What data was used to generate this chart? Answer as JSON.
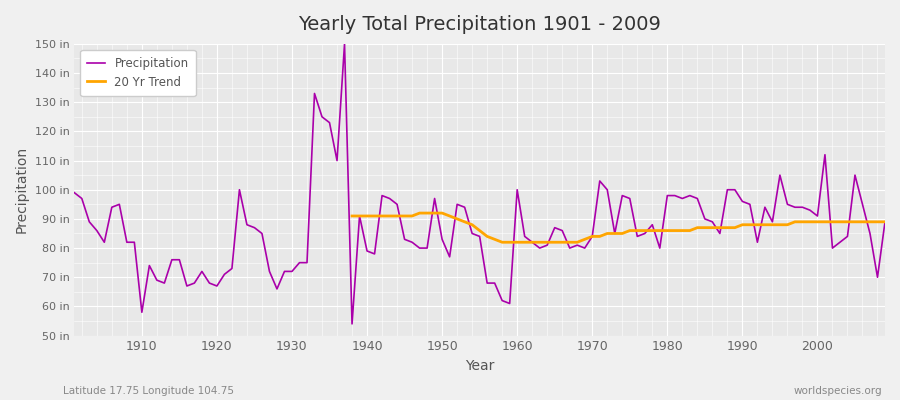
{
  "title": "Yearly Total Precipitation 1901 - 2009",
  "xlabel": "Year",
  "ylabel": "Precipitation",
  "bg_color": "#f0f0f0",
  "plot_bg_color": "#e8e8e8",
  "precip_color": "#aa00aa",
  "trend_color": "#ffa500",
  "ylim": [
    50,
    150
  ],
  "yticks": [
    50,
    60,
    70,
    80,
    90,
    100,
    110,
    120,
    130,
    140,
    150
  ],
  "ytick_labels": [
    "50 in",
    "60 in",
    "70 in",
    "80 in",
    "90 in",
    "100 in",
    "110 in",
    "120 in",
    "130 in",
    "140 in",
    "150 in"
  ],
  "xlim": [
    1901,
    2009
  ],
  "xticks": [
    1910,
    1920,
    1930,
    1940,
    1950,
    1960,
    1970,
    1980,
    1990,
    2000
  ],
  "footnote_left": "Latitude 17.75 Longitude 104.75",
  "footnote_right": "worldspecies.org",
  "legend_labels": [
    "Precipitation",
    "20 Yr Trend"
  ],
  "years": [
    1901,
    1902,
    1903,
    1904,
    1905,
    1906,
    1907,
    1908,
    1909,
    1910,
    1911,
    1912,
    1913,
    1914,
    1915,
    1916,
    1917,
    1918,
    1919,
    1920,
    1921,
    1922,
    1923,
    1924,
    1925,
    1926,
    1927,
    1928,
    1929,
    1930,
    1931,
    1932,
    1933,
    1934,
    1935,
    1936,
    1937,
    1938,
    1939,
    1940,
    1941,
    1942,
    1943,
    1944,
    1945,
    1946,
    1947,
    1948,
    1949,
    1950,
    1951,
    1952,
    1953,
    1954,
    1955,
    1956,
    1957,
    1958,
    1959,
    1960,
    1961,
    1962,
    1963,
    1964,
    1965,
    1966,
    1967,
    1968,
    1969,
    1970,
    1971,
    1972,
    1973,
    1974,
    1975,
    1976,
    1977,
    1978,
    1979,
    1980,
    1981,
    1982,
    1983,
    1984,
    1985,
    1986,
    1987,
    1988,
    1989,
    1990,
    1991,
    1992,
    1993,
    1994,
    1995,
    1996,
    1997,
    1998,
    1999,
    2000,
    2001,
    2002,
    2003,
    2004,
    2005,
    2006,
    2007,
    2008,
    2009
  ],
  "precip": [
    99,
    97,
    89,
    86,
    82,
    94,
    95,
    82,
    82,
    58,
    74,
    69,
    68,
    76,
    76,
    67,
    68,
    72,
    68,
    67,
    71,
    73,
    100,
    88,
    87,
    85,
    72,
    66,
    72,
    72,
    75,
    75,
    133,
    125,
    123,
    110,
    150,
    54,
    91,
    79,
    78,
    98,
    97,
    95,
    83,
    82,
    80,
    80,
    97,
    83,
    77,
    95,
    94,
    85,
    84,
    68,
    68,
    62,
    61,
    100,
    84,
    82,
    80,
    81,
    87,
    86,
    80,
    81,
    80,
    84,
    103,
    100,
    85,
    98,
    97,
    84,
    85,
    88,
    80,
    98,
    98,
    97,
    98,
    97,
    90,
    89,
    85,
    100,
    100,
    96,
    95,
    82,
    94,
    89,
    105,
    95,
    94,
    94,
    93,
    91,
    112,
    80,
    82,
    84,
    105,
    95,
    85,
    70,
    89
  ],
  "trend_years": [
    1938,
    1939,
    1940,
    1941,
    1942,
    1943,
    1944,
    1945,
    1946,
    1947,
    1948,
    1949,
    1950,
    1951,
    1952,
    1953,
    1954,
    1955,
    1956,
    1957,
    1958,
    1959,
    1960,
    1961,
    1962,
    1963,
    1964,
    1965,
    1966,
    1967,
    1968,
    1969,
    1970,
    1971,
    1972,
    1973,
    1974,
    1975,
    1976,
    1977,
    1978,
    1979,
    1980,
    1981,
    1982,
    1983,
    1984,
    1985,
    1986,
    1987,
    1988,
    1989,
    1990,
    1991,
    1992,
    1993,
    1994,
    1995,
    1996,
    1997,
    1998,
    1999,
    2000,
    2001,
    2002,
    2003,
    2004,
    2005,
    2006,
    2007,
    2008,
    2009
  ],
  "trend": [
    91,
    91,
    91,
    91,
    91,
    91,
    91,
    91,
    91,
    92,
    92,
    92,
    92,
    91,
    90,
    89,
    88,
    86,
    84,
    83,
    82,
    82,
    82,
    82,
    82,
    82,
    82,
    82,
    82,
    82,
    82,
    83,
    84,
    84,
    85,
    85,
    85,
    86,
    86,
    86,
    86,
    86,
    86,
    86,
    86,
    86,
    87,
    87,
    87,
    87,
    87,
    87,
    88,
    88,
    88,
    88,
    88,
    88,
    88,
    89,
    89,
    89,
    89,
    89,
    89,
    89,
    89,
    89,
    89,
    89,
    89,
    89
  ]
}
